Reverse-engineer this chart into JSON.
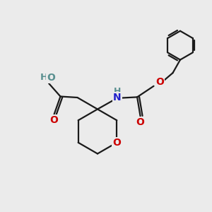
{
  "bg_color": "#ebebeb",
  "bond_color": "#1a1a1a",
  "oxygen_color": "#cc0000",
  "nitrogen_color": "#2222cc",
  "ho_color": "#5a9090",
  "line_width": 1.6,
  "figsize": [
    3.0,
    3.0
  ],
  "dpi": 100,
  "xlim": [
    0,
    10
  ],
  "ylim": [
    0,
    10
  ]
}
